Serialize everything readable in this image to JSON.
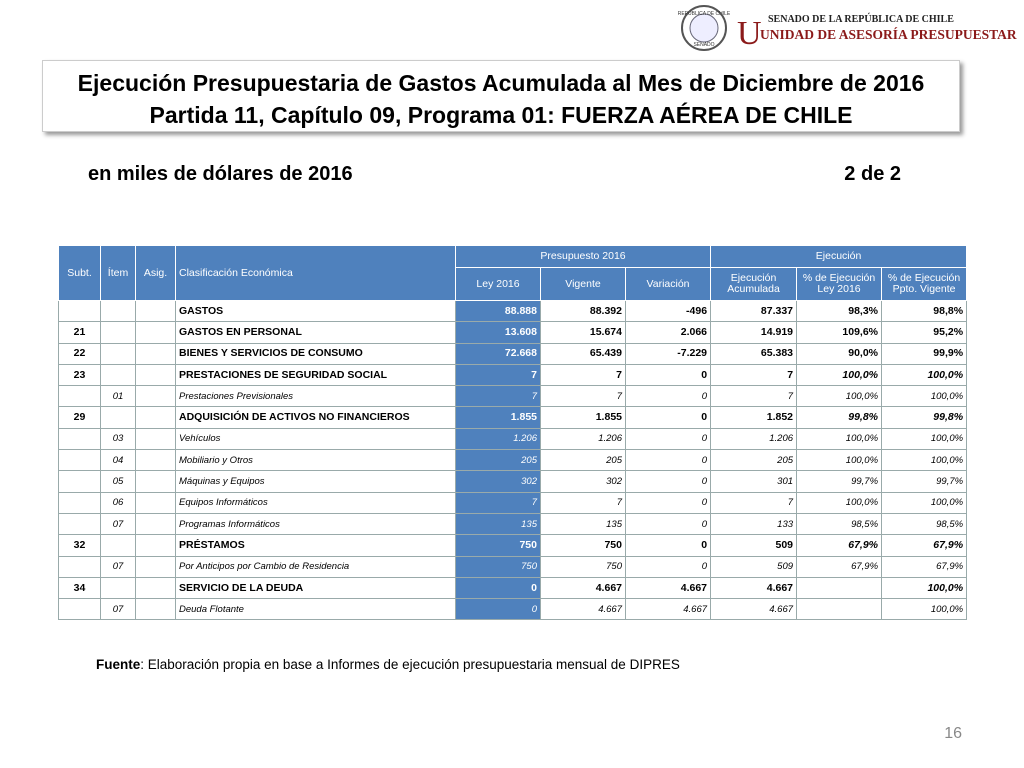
{
  "logo": {
    "seal_top": "REPÚBLICA DE CHILE",
    "seal_bottom": "SENADO",
    "line1": "SENADO DE LA REPÚBLICA DE CHILE",
    "line2": "UNIDAD DE ASESORÍA PRESUPUESTARIA"
  },
  "header": {
    "title_line1": "Ejecución Presupuestaria de Gastos Acumulada al Mes de Diciembre de 2016",
    "title_line2": "Partida 11, Capítulo 09, Programa 01: FUERZA AÉREA DE CHILE",
    "subtitle": "en miles de dólares de 2016",
    "page_of": "2 de 2"
  },
  "table": {
    "groups": {
      "presupuesto": "Presupuesto 2016",
      "ejecucion": "Ejecución"
    },
    "columns": {
      "subt": "Subt.",
      "item": "Ítem",
      "asig": "Asig.",
      "name": "Clasificación Económica",
      "ley": "Ley 2016",
      "vigente": "Vigente",
      "variacion": "Variación",
      "ejecucion": "Ejecución Acumulada",
      "pct_ley": "% de Ejecución Ley 2016",
      "pct_vigente": "% de Ejecución Ppto. Vigente"
    },
    "rows": [
      {
        "name": "GASTOS",
        "ley": "88.888",
        "vigente": "88.392",
        "variacion": "-496",
        "ejecucion": "87.337",
        "pct_ley": "98,3%",
        "pct_vigente": "98,8%"
      },
      {
        "subt": "21",
        "name": "GASTOS EN PERSONAL",
        "ley": "13.608",
        "vigente": "15.674",
        "variacion": "2.066",
        "ejecucion": "14.919",
        "pct_ley": "109,6%",
        "pct_vigente": "95,2%"
      },
      {
        "subt": "22",
        "name": "BIENES Y SERVICIOS DE CONSUMO",
        "ley": "72.668",
        "vigente": "65.439",
        "variacion": "-7.229",
        "ejecucion": "65.383",
        "pct_ley": "90,0%",
        "pct_vigente": "99,9%"
      },
      {
        "subt": "23",
        "name": "PRESTACIONES DE SEGURIDAD SOCIAL",
        "ley": "7",
        "vigente": "7",
        "variacion": "0",
        "ejecucion": "7",
        "pct_ley": "100,0%",
        "pct_vigente": "100,0%"
      },
      {
        "item": "01",
        "name": "Prestaciones Previsionales",
        "ley": "7",
        "vigente": "7",
        "variacion": "0",
        "ejecucion": "7",
        "pct_ley": "100,0%",
        "pct_vigente": "100,0%"
      },
      {
        "subt": "29",
        "name": "ADQUISICIÓN DE ACTIVOS NO FINANCIEROS",
        "ley": "1.855",
        "vigente": "1.855",
        "variacion": "0",
        "ejecucion": "1.852",
        "pct_ley": "99,8%",
        "pct_vigente": "99,8%"
      },
      {
        "item": "03",
        "name": "Vehículos",
        "ley": "1.206",
        "vigente": "1.206",
        "variacion": "0",
        "ejecucion": "1.206",
        "pct_ley": "100,0%",
        "pct_vigente": "100,0%"
      },
      {
        "item": "04",
        "name": "Mobiliario y Otros",
        "ley": "205",
        "vigente": "205",
        "variacion": "0",
        "ejecucion": "205",
        "pct_ley": "100,0%",
        "pct_vigente": "100,0%"
      },
      {
        "item": "05",
        "name": "Máquinas y Equipos",
        "ley": "302",
        "vigente": "302",
        "variacion": "0",
        "ejecucion": "301",
        "pct_ley": "99,7%",
        "pct_vigente": "99,7%"
      },
      {
        "item": "06",
        "name": "Equipos Informáticos",
        "ley": "7",
        "vigente": "7",
        "variacion": "0",
        "ejecucion": "7",
        "pct_ley": "100,0%",
        "pct_vigente": "100,0%"
      },
      {
        "item": "07",
        "name": "Programas Informáticos",
        "ley": "135",
        "vigente": "135",
        "variacion": "0",
        "ejecucion": "133",
        "pct_ley": "98,5%",
        "pct_vigente": "98,5%"
      },
      {
        "subt": "32",
        "name": "PRÉSTAMOS",
        "ley": "750",
        "vigente": "750",
        "variacion": "0",
        "ejecucion": "509",
        "pct_ley": "67,9%",
        "pct_vigente": "67,9%"
      },
      {
        "item": "07",
        "name": "Por Anticipos por Cambio de Residencia",
        "ley": "750",
        "vigente": "750",
        "variacion": "0",
        "ejecucion": "509",
        "pct_ley": "67,9%",
        "pct_vigente": "67,9%"
      },
      {
        "subt": "34",
        "name": "SERVICIO DE LA DEUDA",
        "ley": "0",
        "vigente": "4.667",
        "variacion": "4.667",
        "ejecucion": "4.667",
        "pct_vigente": "100,0%"
      },
      {
        "item": "07",
        "name": "Deuda Flotante",
        "ley": "0",
        "vigente": "4.667",
        "variacion": "4.667",
        "ejecucion": "4.667",
        "pct_vigente": "100,0%"
      }
    ]
  },
  "footer": {
    "source_label": "Fuente",
    "source_text": ": Elaboración propia en base  a Informes de ejecución presupuestaria mensual de DIPRES",
    "page_number": "16"
  }
}
